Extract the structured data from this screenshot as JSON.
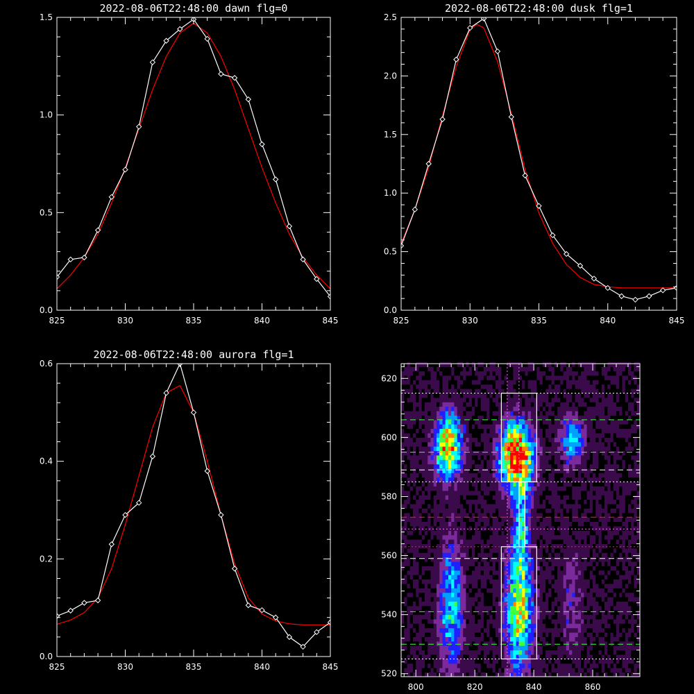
{
  "chart_data": [
    {
      "type": "line",
      "title": "2022-08-06T22:48:00 dawn flg=0",
      "xlim": [
        825,
        845
      ],
      "ylim": [
        0,
        1.5
      ],
      "xticks": [
        825,
        830,
        835,
        840,
        845
      ],
      "yticks": [
        0.0,
        0.5,
        1.0,
        1.5
      ],
      "xtick_labels": [
        "825",
        "830",
        "835",
        "840",
        "845"
      ],
      "ytick_labels": [
        "0.0",
        "0.5",
        "1.0",
        "1.5"
      ],
      "series": [
        {
          "color": "#ffffff",
          "marker": "diamond",
          "x": [
            825,
            826,
            827,
            828,
            829,
            830,
            831,
            832,
            833,
            834,
            835,
            836,
            837,
            838,
            839,
            840,
            841,
            842,
            843,
            844,
            845
          ],
          "y": [
            0.17,
            0.26,
            0.27,
            0.41,
            0.58,
            0.72,
            0.94,
            1.27,
            1.38,
            1.44,
            1.49,
            1.39,
            1.21,
            1.19,
            1.08,
            0.85,
            0.67,
            0.43,
            0.26,
            0.16,
            0.07
          ]
        },
        {
          "color": "#ff0000",
          "marker": "none",
          "x": [
            825,
            826,
            827,
            828,
            829,
            830,
            831,
            832,
            833,
            834,
            835,
            836,
            837,
            838,
            839,
            840,
            841,
            842,
            843,
            844,
            845
          ],
          "y": [
            0.11,
            0.18,
            0.27,
            0.39,
            0.55,
            0.73,
            0.93,
            1.13,
            1.3,
            1.42,
            1.47,
            1.42,
            1.3,
            1.13,
            0.93,
            0.73,
            0.55,
            0.39,
            0.27,
            0.18,
            0.11
          ]
        }
      ]
    },
    {
      "type": "line",
      "title": "2022-08-06T22:48:00 dusk flg=1",
      "xlim": [
        825,
        845
      ],
      "ylim": [
        0,
        2.5
      ],
      "xticks": [
        825,
        830,
        835,
        840,
        845
      ],
      "yticks": [
        0.0,
        0.5,
        1.0,
        1.5,
        2.0,
        2.5
      ],
      "xtick_labels": [
        "825",
        "830",
        "835",
        "840",
        "845"
      ],
      "ytick_labels": [
        "0.0",
        "0.5",
        "1.0",
        "1.5",
        "2.0",
        "2.5"
      ],
      "series": [
        {
          "color": "#ffffff",
          "marker": "diamond",
          "x": [
            825,
            826,
            827,
            828,
            829,
            830,
            831,
            832,
            833,
            834,
            835,
            836,
            837,
            838,
            839,
            840,
            841,
            842,
            843,
            844,
            845
          ],
          "y": [
            0.55,
            0.86,
            1.25,
            1.63,
            2.14,
            2.41,
            2.49,
            2.21,
            1.65,
            1.15,
            0.89,
            0.64,
            0.48,
            0.38,
            0.27,
            0.19,
            0.12,
            0.09,
            0.12,
            0.17,
            0.19
          ]
        },
        {
          "color": "#ff0000",
          "marker": "none",
          "x": [
            825,
            826,
            827,
            828,
            829,
            830,
            830.5,
            831,
            832,
            833,
            834,
            835,
            836,
            837,
            838,
            839,
            840,
            841,
            842,
            843,
            844,
            845
          ],
          "y": [
            0.57,
            0.86,
            1.22,
            1.66,
            2.08,
            2.4,
            2.44,
            2.41,
            2.12,
            1.68,
            1.2,
            0.83,
            0.57,
            0.39,
            0.28,
            0.22,
            0.2,
            0.19,
            0.19,
            0.19,
            0.19,
            0.19
          ]
        }
      ]
    },
    {
      "type": "line",
      "title": "2022-08-06T22:48:00 aurora flg=1",
      "xlim": [
        825,
        845
      ],
      "ylim": [
        0,
        0.6
      ],
      "xticks": [
        825,
        830,
        835,
        840,
        845
      ],
      "yticks": [
        0.0,
        0.2,
        0.4,
        0.6
      ],
      "xtick_labels": [
        "825",
        "830",
        "835",
        "840",
        "845"
      ],
      "ytick_labels": [
        "0.0",
        "0.2",
        "0.4",
        "0.6"
      ],
      "series": [
        {
          "color": "#ffffff",
          "marker": "diamond",
          "x": [
            825,
            826,
            827,
            828,
            829,
            830,
            831,
            832,
            833,
            834,
            835,
            836,
            837,
            838,
            839,
            840,
            841,
            842,
            843,
            844,
            845
          ],
          "y": [
            0.083,
            0.094,
            0.11,
            0.115,
            0.23,
            0.29,
            0.315,
            0.41,
            0.54,
            0.6,
            0.5,
            0.38,
            0.29,
            0.18,
            0.105,
            0.095,
            0.08,
            0.04,
            0.02,
            0.05,
            0.07
          ]
        },
        {
          "color": "#ff0000",
          "marker": "none",
          "x": [
            825,
            826,
            827,
            828,
            829,
            830,
            831,
            832,
            833,
            834,
            835,
            836,
            837,
            838,
            839,
            840,
            841,
            842,
            843,
            844,
            845
          ],
          "y": [
            0.066,
            0.075,
            0.09,
            0.12,
            0.18,
            0.27,
            0.37,
            0.47,
            0.54,
            0.555,
            0.5,
            0.4,
            0.29,
            0.19,
            0.12,
            0.087,
            0.073,
            0.067,
            0.065,
            0.065,
            0.065
          ]
        }
      ]
    },
    {
      "type": "heatmap",
      "title": "",
      "xlim": [
        795,
        876
      ],
      "ylim": [
        519,
        625
      ],
      "xticks": [
        800,
        820,
        840,
        860
      ],
      "yticks": [
        520,
        540,
        560,
        580,
        600,
        620
      ],
      "xtick_labels": [
        "800",
        "820",
        "840",
        "860"
      ],
      "ytick_labels": [
        "520",
        "540",
        "560",
        "580",
        "600",
        "620"
      ],
      "colormap": [
        "#000000",
        "#3a0a4a",
        "#7a2a9a",
        "#2020ff",
        "#00a0ff",
        "#00ffff",
        "#40ff40",
        "#ffff00",
        "#ff8000",
        "#ff0000"
      ],
      "blobs": [
        {
          "xc": 811,
          "yc": 597,
          "sx": 3.5,
          "sy": 8,
          "peak": 0.75
        },
        {
          "xc": 812,
          "yc": 543,
          "sx": 3,
          "sy": 16,
          "peak": 0.5
        },
        {
          "xc": 834,
          "yc": 594,
          "sx": 4,
          "sy": 8,
          "peak": 1.0
        },
        {
          "xc": 835,
          "yc": 542,
          "sx": 3.5,
          "sy": 16,
          "peak": 0.65
        },
        {
          "xc": 836,
          "yc": 572,
          "sx": 2,
          "sy": 10,
          "peak": 0.35
        },
        {
          "xc": 853,
          "yc": 599,
          "sx": 3,
          "sy": 6,
          "peak": 0.45
        },
        {
          "xc": 853,
          "yc": 545,
          "sx": 3,
          "sy": 15,
          "peak": 0.2
        }
      ],
      "vertical_lines": [
        {
          "x": 831,
          "color": "#ff66ff",
          "style": "dotted"
        },
        {
          "x": 835,
          "color": "#ff66ff",
          "style": "dotted"
        }
      ],
      "horizontal_lines": [
        {
          "y": 615,
          "color": "#ffffff",
          "style": "dotted"
        },
        {
          "y": 606,
          "color": "#40ff40",
          "style": "dashed"
        },
        {
          "y": 595,
          "color": "#40ff40",
          "style": "dashed"
        },
        {
          "y": 589,
          "color": "#ffffff",
          "style": "dashed"
        },
        {
          "y": 585,
          "color": "#ffffff",
          "style": "dotted"
        },
        {
          "y": 573,
          "color": "#ff2020",
          "style": "dashed"
        },
        {
          "y": 569,
          "color": "#ff66ff",
          "style": "dotted"
        },
        {
          "y": 563,
          "color": "#ff2020",
          "style": "dotted"
        },
        {
          "y": 559,
          "color": "#ffffff",
          "style": "dashed"
        },
        {
          "y": 541,
          "color": "#40ff40",
          "style": "dashed"
        },
        {
          "y": 530,
          "color": "#40ff40",
          "style": "dashed"
        },
        {
          "y": 525,
          "color": "#ffffff",
          "style": "dotted"
        }
      ],
      "boxes": [
        {
          "x0": 829,
          "x1": 841,
          "y0": 585,
          "y1": 615,
          "color": "#ffffff"
        },
        {
          "x0": 829,
          "x1": 841,
          "y0": 525,
          "y1": 563,
          "color": "#ffffff"
        },
        {
          "x0": 835,
          "x1": 837,
          "y0": 563,
          "y1": 585,
          "color": "#ffffff"
        }
      ]
    }
  ]
}
